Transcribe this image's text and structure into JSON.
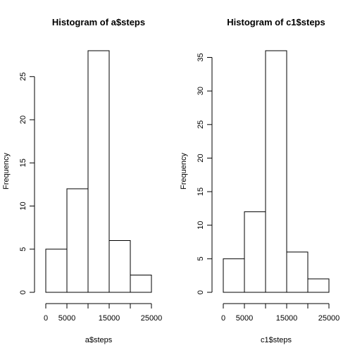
{
  "chart_data": [
    {
      "type": "bar",
      "title": "Histogram of a$steps",
      "xlabel": "a$steps",
      "ylabel": "Frequency",
      "bins": [
        [
          0,
          5000
        ],
        [
          5000,
          10000
        ],
        [
          10000,
          15000
        ],
        [
          15000,
          20000
        ],
        [
          20000,
          25000
        ]
      ],
      "values": [
        5,
        12,
        28,
        6,
        2
      ],
      "xlim": [
        0,
        25000
      ],
      "ylim": [
        0,
        28
      ],
      "xticks": [
        0,
        5000,
        10000,
        15000,
        20000,
        25000
      ],
      "xtick_labels": [
        "0",
        "5000",
        "",
        "15000",
        "",
        "25000"
      ],
      "yticks": [
        0,
        5,
        10,
        15,
        20,
        25
      ],
      "ytick_labels": [
        "0",
        "5",
        "10",
        "15",
        "20",
        "25"
      ]
    },
    {
      "type": "bar",
      "title": "Histogram of c1$steps",
      "xlabel": "c1$steps",
      "ylabel": "Frequency",
      "bins": [
        [
          0,
          5000
        ],
        [
          5000,
          10000
        ],
        [
          10000,
          15000
        ],
        [
          15000,
          20000
        ],
        [
          20000,
          25000
        ]
      ],
      "values": [
        5,
        12,
        36,
        6,
        2
      ],
      "xlim": [
        0,
        25000
      ],
      "ylim": [
        0,
        36
      ],
      "xticks": [
        0,
        5000,
        10000,
        15000,
        20000,
        25000
      ],
      "xtick_labels": [
        "0",
        "5000",
        "",
        "15000",
        "",
        "25000"
      ],
      "yticks": [
        0,
        5,
        10,
        15,
        20,
        25,
        30,
        35
      ],
      "ytick_labels": [
        "0",
        "5",
        "10",
        "15",
        "20",
        "25",
        "30",
        "35"
      ]
    }
  ]
}
